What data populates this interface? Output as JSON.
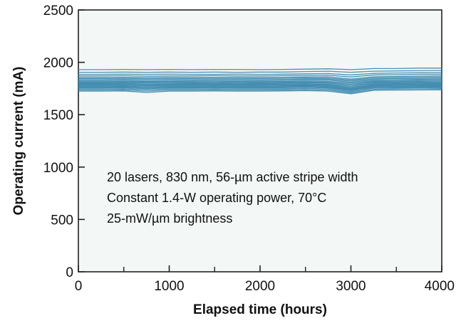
{
  "chart_data": {
    "type": "line",
    "title": "",
    "xlabel": "Elapsed time (hours)",
    "ylabel": "Operating current (mA)",
    "xlim": [
      0,
      4000
    ],
    "ylim": [
      0,
      2500
    ],
    "x_ticks": [
      0,
      1000,
      2000,
      3000,
      4000
    ],
    "x_minor_ticks": [
      500,
      1500,
      2500,
      3500
    ],
    "y_ticks": [
      0,
      500,
      1000,
      1500,
      2000,
      2500
    ],
    "grid": false,
    "annotations": [
      "20 lasers, 830 nm, 56-µm active stripe width",
      "Constant 1.4-W operating power, 70°C",
      "25-mW/µm brightness"
    ],
    "series_count": 20,
    "series_color": "#2b7fa8",
    "plot_background": "#f3f7f6",
    "x": [
      0,
      250,
      500,
      750,
      1000,
      1250,
      1500,
      1750,
      2000,
      2250,
      2500,
      2750,
      3000,
      3250,
      3500,
      3750,
      4000
    ],
    "series": [
      {
        "values": [
          1930,
          1930,
          1932,
          1930,
          1932,
          1930,
          1932,
          1932,
          1930,
          1932,
          1935,
          1938,
          1930,
          1940,
          1940,
          1945,
          1945
        ]
      },
      {
        "values": [
          1905,
          1905,
          1907,
          1905,
          1907,
          1905,
          1907,
          1905,
          1907,
          1907,
          1912,
          1915,
          1905,
          1915,
          1918,
          1920,
          1922
        ]
      },
      {
        "values": [
          1885,
          1885,
          1887,
          1885,
          1887,
          1885,
          1885,
          1887,
          1885,
          1887,
          1890,
          1893,
          1880,
          1895,
          1898,
          1900,
          1900
        ]
      },
      {
        "values": [
          1870,
          1870,
          1872,
          1868,
          1870,
          1870,
          1872,
          1870,
          1870,
          1872,
          1875,
          1878,
          1860,
          1880,
          1882,
          1885,
          1885
        ]
      },
      {
        "values": [
          1855,
          1855,
          1857,
          1855,
          1857,
          1855,
          1855,
          1857,
          1855,
          1857,
          1860,
          1862,
          1840,
          1862,
          1865,
          1868,
          1870
        ]
      },
      {
        "values": [
          1845,
          1845,
          1847,
          1843,
          1845,
          1845,
          1847,
          1845,
          1845,
          1847,
          1850,
          1850,
          1830,
          1852,
          1855,
          1858,
          1858
        ]
      },
      {
        "values": [
          1835,
          1835,
          1837,
          1835,
          1837,
          1835,
          1835,
          1837,
          1835,
          1837,
          1840,
          1840,
          1820,
          1842,
          1845,
          1846,
          1848
        ]
      },
      {
        "values": [
          1825,
          1825,
          1827,
          1822,
          1825,
          1825,
          1827,
          1825,
          1825,
          1827,
          1830,
          1830,
          1810,
          1832,
          1835,
          1836,
          1838
        ]
      },
      {
        "values": [
          1815,
          1815,
          1817,
          1815,
          1817,
          1815,
          1815,
          1817,
          1815,
          1817,
          1820,
          1818,
          1800,
          1822,
          1825,
          1826,
          1828
        ]
      },
      {
        "values": [
          1808,
          1808,
          1810,
          1805,
          1808,
          1808,
          1810,
          1808,
          1808,
          1810,
          1812,
          1810,
          1790,
          1815,
          1815,
          1818,
          1820
        ]
      },
      {
        "values": [
          1800,
          1800,
          1802,
          1800,
          1802,
          1800,
          1800,
          1802,
          1800,
          1802,
          1805,
          1802,
          1780,
          1806,
          1808,
          1810,
          1810
        ]
      },
      {
        "values": [
          1792,
          1792,
          1794,
          1790,
          1792,
          1792,
          1794,
          1792,
          1792,
          1794,
          1796,
          1793,
          1770,
          1798,
          1800,
          1802,
          1802
        ]
      },
      {
        "values": [
          1785,
          1785,
          1787,
          1783,
          1785,
          1785,
          1787,
          1785,
          1785,
          1787,
          1788,
          1785,
          1760,
          1790,
          1792,
          1794,
          1795
        ]
      },
      {
        "values": [
          1778,
          1778,
          1780,
          1775,
          1778,
          1778,
          1780,
          1778,
          1778,
          1780,
          1782,
          1778,
          1752,
          1782,
          1785,
          1786,
          1788
        ]
      },
      {
        "values": [
          1770,
          1770,
          1772,
          1765,
          1770,
          1770,
          1772,
          1770,
          1770,
          1772,
          1775,
          1770,
          1745,
          1775,
          1778,
          1780,
          1780
        ]
      },
      {
        "values": [
          1762,
          1762,
          1764,
          1758,
          1762,
          1762,
          1764,
          1762,
          1762,
          1764,
          1766,
          1762,
          1738,
          1768,
          1770,
          1772,
          1772
        ]
      },
      {
        "values": [
          1755,
          1755,
          1757,
          1748,
          1755,
          1755,
          1757,
          1755,
          1755,
          1757,
          1760,
          1755,
          1730,
          1760,
          1762,
          1764,
          1765
        ]
      },
      {
        "values": [
          1745,
          1745,
          1747,
          1738,
          1745,
          1745,
          1747,
          1745,
          1745,
          1747,
          1750,
          1745,
          1720,
          1752,
          1755,
          1756,
          1758
        ]
      },
      {
        "values": [
          1735,
          1735,
          1737,
          1725,
          1735,
          1735,
          1737,
          1735,
          1735,
          1737,
          1740,
          1735,
          1710,
          1742,
          1745,
          1746,
          1748
        ]
      },
      {
        "values": [
          1725,
          1725,
          1727,
          1712,
          1725,
          1725,
          1727,
          1725,
          1725,
          1727,
          1730,
          1725,
          1700,
          1732,
          1735,
          1736,
          1738
        ]
      }
    ]
  }
}
